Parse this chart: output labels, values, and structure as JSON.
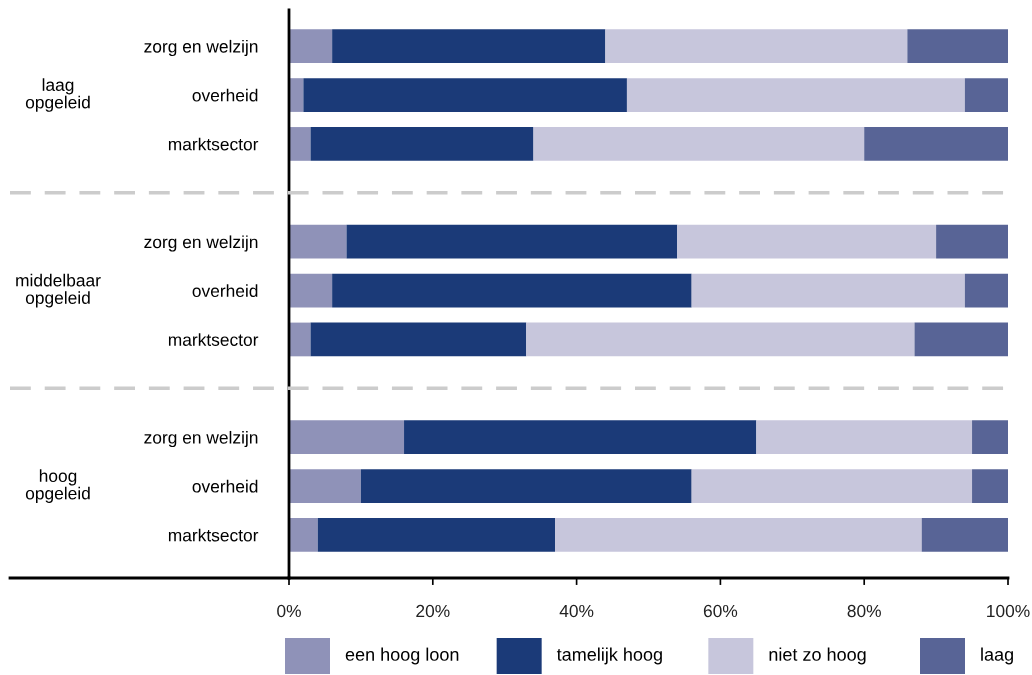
{
  "chart_data": {
    "type": "bar",
    "orientation": "horizontal",
    "stacked": true,
    "categories": [
      "zorg en welzijn",
      "overheid",
      "marktsector",
      null,
      "zorg en welzijn",
      "overheid",
      "marktsector",
      null,
      "zorg en welzijn",
      "overheid",
      "marktsector"
    ],
    "series": [
      {
        "name": "een hoog loon",
        "color": "#8f92b8",
        "values": [
          6,
          2,
          3,
          null,
          8,
          6,
          3,
          null,
          16,
          10,
          4
        ]
      },
      {
        "name": "tamelijk hoog",
        "color": "#1b3a78",
        "values": [
          38,
          45,
          31,
          null,
          46,
          50,
          30,
          null,
          49,
          46,
          33
        ]
      },
      {
        "name": "niet zo hoog",
        "color": "#c7c6dc",
        "values": [
          42,
          47,
          46,
          null,
          36,
          38,
          54,
          null,
          30,
          39,
          51
        ]
      },
      {
        "name": "laag",
        "color": "#586496",
        "values": [
          14,
          6,
          20,
          null,
          10,
          6,
          13,
          null,
          5,
          5,
          12
        ]
      }
    ],
    "annotations": [
      "laag\nopgeleid",
      "middelbaar\nopgeleid",
      "hoog\nopgeleid"
    ],
    "xlim": [
      0,
      100
    ],
    "xticks": [
      {
        "value": 0,
        "label": "0%"
      },
      {
        "value": 20,
        "label": "20%"
      },
      {
        "value": 40,
        "label": "40%"
      },
      {
        "value": 60,
        "label": "60%"
      },
      {
        "value": 80,
        "label": "80%"
      },
      {
        "value": 100,
        "label": "100%"
      }
    ],
    "legend": "bottom",
    "grid": false
  }
}
